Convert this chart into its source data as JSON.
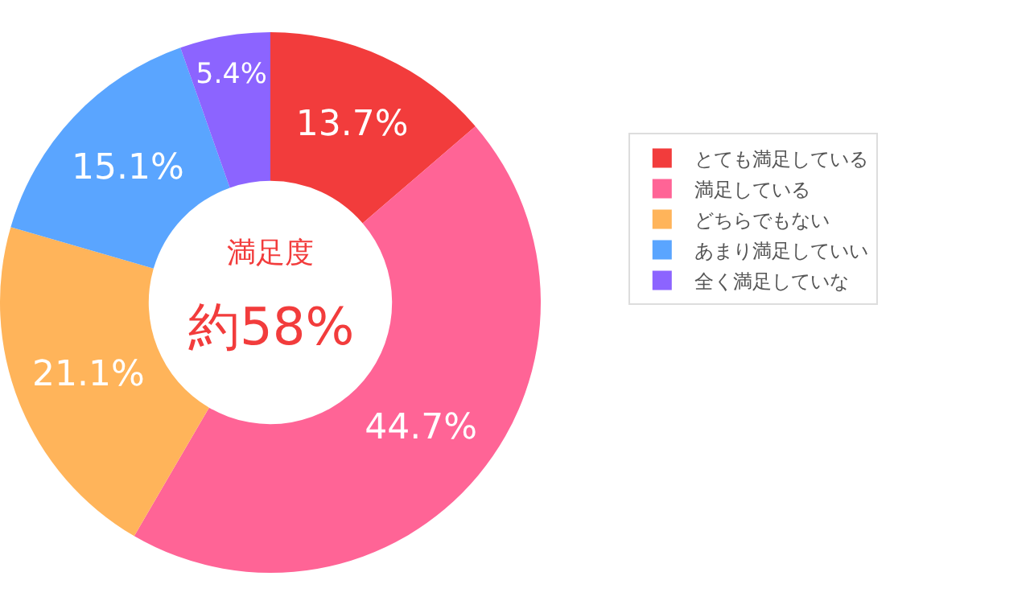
{
  "chart_data": {
    "type": "donut",
    "categories": [
      "とても満足している",
      "満足している",
      "どちらでもない",
      "あまり満足していい",
      "全く満足していな"
    ],
    "values": [
      13.7,
      44.7,
      21.1,
      15.1,
      5.4
    ],
    "colors": [
      "#f23c3c",
      "#ff6496",
      "#ffb45a",
      "#5aa5ff",
      "#8c64ff"
    ],
    "value_labels": [
      "13.7%",
      "44.7%",
      "21.1%",
      "15.1%",
      "5.4%"
    ],
    "annotations": [
      "満足度",
      "約58%"
    ],
    "legend": "right"
  }
}
